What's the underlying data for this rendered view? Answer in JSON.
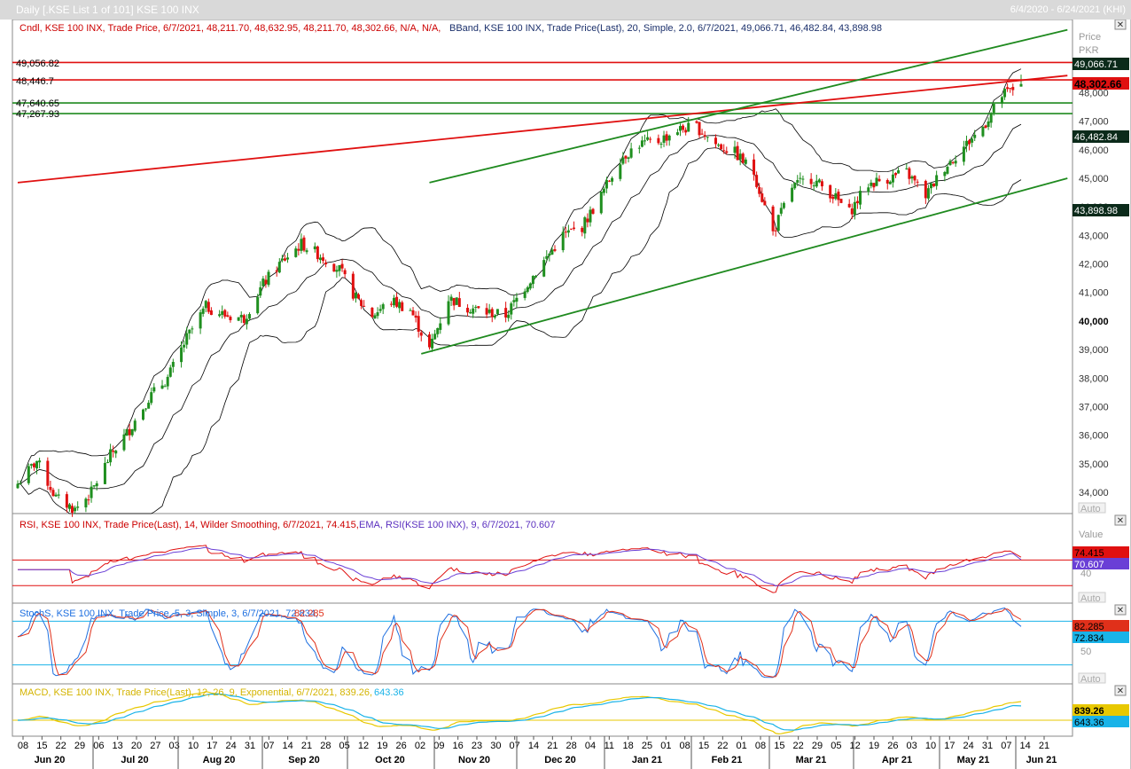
{
  "window": {
    "title": "Daily [.KSE List 1 of 101] KSE 100 INX",
    "date_range": "6/4/2020 - 6/24/2021 (KHI)"
  },
  "price_pane": {
    "legend_candle": "Cndl, KSE 100 INX, Trade Price, 6/7/2021, 48,211.70, 48,632.95, 48,211.70, 48,302.66, N/A, N/A,",
    "legend_bband": "BBand, KSE 100 INX, Trade Price(Last),  20, Simple, 2.0, 6/7/2021, 49,066.71, 46,482.84, 43,898.98",
    "axis_title_1": "Price",
    "axis_title_2": "PKR",
    "auto_label": "Auto",
    "hline_labels": [
      "49,056.82",
      "48,446.7",
      "47,640.65",
      "47,267.93"
    ],
    "badges": {
      "bb_upper": "49,066.71",
      "last_price": "48,302.66",
      "bb_middle": "46,482.84",
      "bb_lower": "43,898.98"
    }
  },
  "rsi_pane": {
    "legend_rsi": "RSI, KSE 100 INX, Trade Price(Last),  14, Wilder Smoothing, 6/7/2021, 74.415,",
    "legend_ema": "EMA, RSI(KSE 100 INX),  9, 6/7/2021, 70.607",
    "axis_title": "Value",
    "tick": "40",
    "badge_rsi": "74.415",
    "badge_ema": "70.607",
    "auto_label": "Auto"
  },
  "stoch_pane": {
    "legend_main": "StochS, KSE 100 INX, Trade Price,  5, 3, Simple, 3, 6/7/2021, 72.834,",
    "legend_k": "82.285",
    "tick": "50",
    "badge_d": "82.285",
    "badge_k": "72.834",
    "auto_label": "Auto"
  },
  "macd_pane": {
    "legend_main": "MACD, KSE 100 INX, Trade Price(Last),  12, 26, 9, Exponential, 6/7/2021, 839.26,",
    "legend_signal": "643.36",
    "badge_macd": "839.26",
    "badge_signal": "643.36"
  },
  "x_axis": {
    "days": [
      "08",
      "15",
      "22",
      "29",
      "06",
      "13",
      "20",
      "27",
      "03",
      "10",
      "17",
      "24",
      "31",
      "07",
      "14",
      "21",
      "28",
      "05",
      "12",
      "19",
      "26",
      "02",
      "09",
      "16",
      "23",
      "30",
      "07",
      "14",
      "21",
      "28",
      "04",
      "11",
      "18",
      "25",
      "01",
      "08",
      "15",
      "22",
      "01",
      "08",
      "15",
      "22",
      "29",
      "05",
      "12",
      "19",
      "26",
      "03",
      "10",
      "17",
      "24",
      "31",
      "07",
      "14",
      "21"
    ],
    "months": [
      "Jun 20",
      "Jul 20",
      "Aug 20",
      "Sep 20",
      "Oct 20",
      "Nov 20",
      "Dec 20",
      "Jan 21",
      "Feb 21",
      "Mar 21",
      "Apr 21",
      "May 21",
      "Jun 21"
    ]
  },
  "colors": {
    "up": "#1f8f1f",
    "down": "#e01010",
    "red_line": "#e01010",
    "green_line": "#1f8a1f",
    "bband": "#000000",
    "rsi": "#e01010",
    "rsi_ema": "#6a3fd6",
    "stoch_k": "#1e6fe0",
    "stoch_d": "#e0301a",
    "macd": "#e8c800",
    "macd_signal": "#19b3e8",
    "stoch_level": "#19b3e8",
    "badge_black": "#0b2a1a"
  },
  "chart_data": {
    "type": "candlestick",
    "title": "KSE 100 INX Daily",
    "ylabel": "Price PKR",
    "y_ticks": [
      34000,
      35000,
      36000,
      37000,
      38000,
      39000,
      40000,
      41000,
      42000,
      43000,
      44000,
      45000,
      46000,
      47000,
      48000
    ],
    "ylim": [
      33300,
      49900
    ],
    "last_candle": {
      "date": "6/7/2021",
      "open": 48211.7,
      "high": 48632.95,
      "low": 48211.7,
      "close": 48302.66
    },
    "bollinger_last": {
      "upper": 49066.71,
      "middle": 46482.84,
      "lower": 43898.98
    },
    "horizontal_lines": [
      {
        "value": 49056.82,
        "color": "red"
      },
      {
        "value": 48446.7,
        "color": "red"
      },
      {
        "value": 47640.65,
        "color": "green"
      },
      {
        "value": 47267.93,
        "color": "green"
      }
    ],
    "trendlines": [
      {
        "name": "red resistance",
        "from": [
          "2020-06-04",
          44850
        ],
        "to": [
          "2021-06-24",
          48600
        ]
      },
      {
        "name": "green upper channel",
        "from": [
          "2020-11-02",
          44850
        ],
        "to": [
          "2021-06-24",
          50200
        ]
      },
      {
        "name": "green lower channel",
        "from": [
          "2020-10-30",
          38850
        ],
        "to": [
          "2021-06-24",
          45000
        ]
      }
    ],
    "price_path": [
      [
        "2020-06-04",
        34300
      ],
      [
        "2020-06-11",
        35100
      ],
      [
        "2020-06-18",
        33800
      ],
      [
        "2020-06-25",
        33400
      ],
      [
        "2020-07-01",
        34000
      ],
      [
        "2020-07-08",
        35300
      ],
      [
        "2020-07-15",
        36200
      ],
      [
        "2020-07-22",
        37300
      ],
      [
        "2020-07-29",
        38000
      ],
      [
        "2020-08-05",
        39400
      ],
      [
        "2020-08-12",
        40500
      ],
      [
        "2020-08-19",
        40200
      ],
      [
        "2020-08-26",
        40100
      ],
      [
        "2020-09-02",
        41300
      ],
      [
        "2020-09-09",
        42100
      ],
      [
        "2020-09-16",
        42700
      ],
      [
        "2020-09-23",
        42300
      ],
      [
        "2020-09-30",
        41800
      ],
      [
        "2020-10-06",
        40800
      ],
      [
        "2020-10-12",
        40200
      ],
      [
        "2020-10-19",
        40700
      ],
      [
        "2020-10-26",
        40400
      ],
      [
        "2020-11-02",
        39000
      ],
      [
        "2020-11-09",
        40800
      ],
      [
        "2020-11-16",
        40500
      ],
      [
        "2020-11-23",
        40300
      ],
      [
        "2020-11-30",
        40200
      ],
      [
        "2020-12-07",
        41200
      ],
      [
        "2020-12-14",
        42100
      ],
      [
        "2020-12-21",
        43000
      ],
      [
        "2020-12-28",
        43300
      ],
      [
        "2021-01-04",
        44400
      ],
      [
        "2021-01-11",
        45700
      ],
      [
        "2021-01-18",
        46200
      ],
      [
        "2021-01-25",
        46300
      ],
      [
        "2021-02-01",
        46700
      ],
      [
        "2021-02-08",
        46800
      ],
      [
        "2021-02-15",
        46200
      ],
      [
        "2021-02-22",
        45900
      ],
      [
        "2021-03-01",
        45200
      ],
      [
        "2021-03-08",
        43100
      ],
      [
        "2021-03-15",
        44700
      ],
      [
        "2021-03-22",
        45000
      ],
      [
        "2021-03-29",
        44500
      ],
      [
        "2021-04-05",
        43800
      ],
      [
        "2021-04-12",
        44800
      ],
      [
        "2021-04-19",
        45000
      ],
      [
        "2021-04-26",
        45200
      ],
      [
        "2021-05-03",
        44400
      ],
      [
        "2021-05-10",
        45400
      ],
      [
        "2021-05-17",
        46100
      ],
      [
        "2021-05-24",
        46800
      ],
      [
        "2021-05-31",
        47900
      ],
      [
        "2021-06-07",
        48300
      ]
    ],
    "rsi_last": {
      "rsi": 74.415,
      "ema": 70.607
    },
    "stochastic_last": {
      "k": 72.834,
      "d": 82.285
    },
    "macd_last": {
      "macd": 839.26,
      "signal": 643.36
    }
  }
}
